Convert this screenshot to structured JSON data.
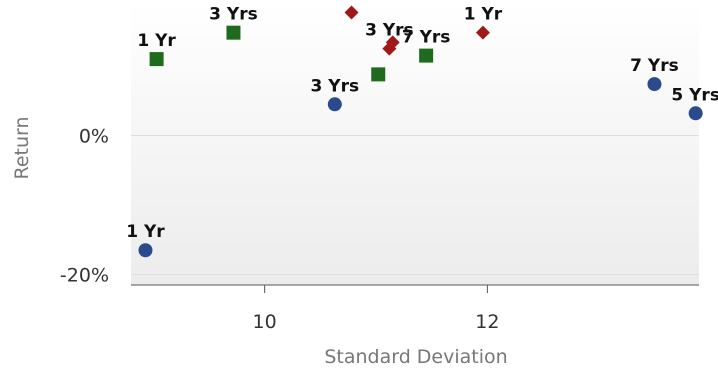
{
  "chart_data": {
    "type": "scatter",
    "title": "",
    "xlabel": "Standard Deviation",
    "ylabel": "Return",
    "x_ticks": [
      10,
      12
    ],
    "x_tick_labels": [
      "10",
      "12"
    ],
    "y_ticks": [
      0,
      -20
    ],
    "y_tick_labels": [
      "0%",
      "-20%"
    ],
    "xlim": [
      8.8,
      13.9
    ],
    "ylim": [
      -21.5,
      19.5
    ],
    "grid": "horizontal",
    "legend": "none",
    "series": [
      {
        "marker": "circle",
        "color": "#2b4a8b",
        "points": [
          {
            "x": 8.93,
            "y": -16.5,
            "label": "1 Yr"
          },
          {
            "x": 10.63,
            "y": 4.5,
            "label": "3 Yrs"
          },
          {
            "x": 13.5,
            "y": 7.4,
            "label": "7 Yrs"
          },
          {
            "x": 13.87,
            "y": 3.2,
            "label": "5 Yrs"
          }
        ]
      },
      {
        "marker": "square",
        "color": "#1e6b1e",
        "points": [
          {
            "x": 9.03,
            "y": 11.0,
            "label": "1 Yr"
          },
          {
            "x": 9.72,
            "y": 14.8,
            "label": "3 Yrs"
          },
          {
            "x": 11.02,
            "y": 8.8,
            "label": ""
          },
          {
            "x": 11.45,
            "y": 11.5,
            "label": "7 Yrs"
          }
        ]
      },
      {
        "marker": "diamond",
        "color": "#a01818",
        "points": [
          {
            "x": 10.78,
            "y": 17.7,
            "label": ""
          },
          {
            "x": 11.12,
            "y": 12.5,
            "label": "3 Yrs"
          },
          {
            "x": 11.15,
            "y": 13.4,
            "label": ""
          },
          {
            "x": 11.96,
            "y": 14.8,
            "label": "1 Yr"
          }
        ]
      }
    ]
  }
}
